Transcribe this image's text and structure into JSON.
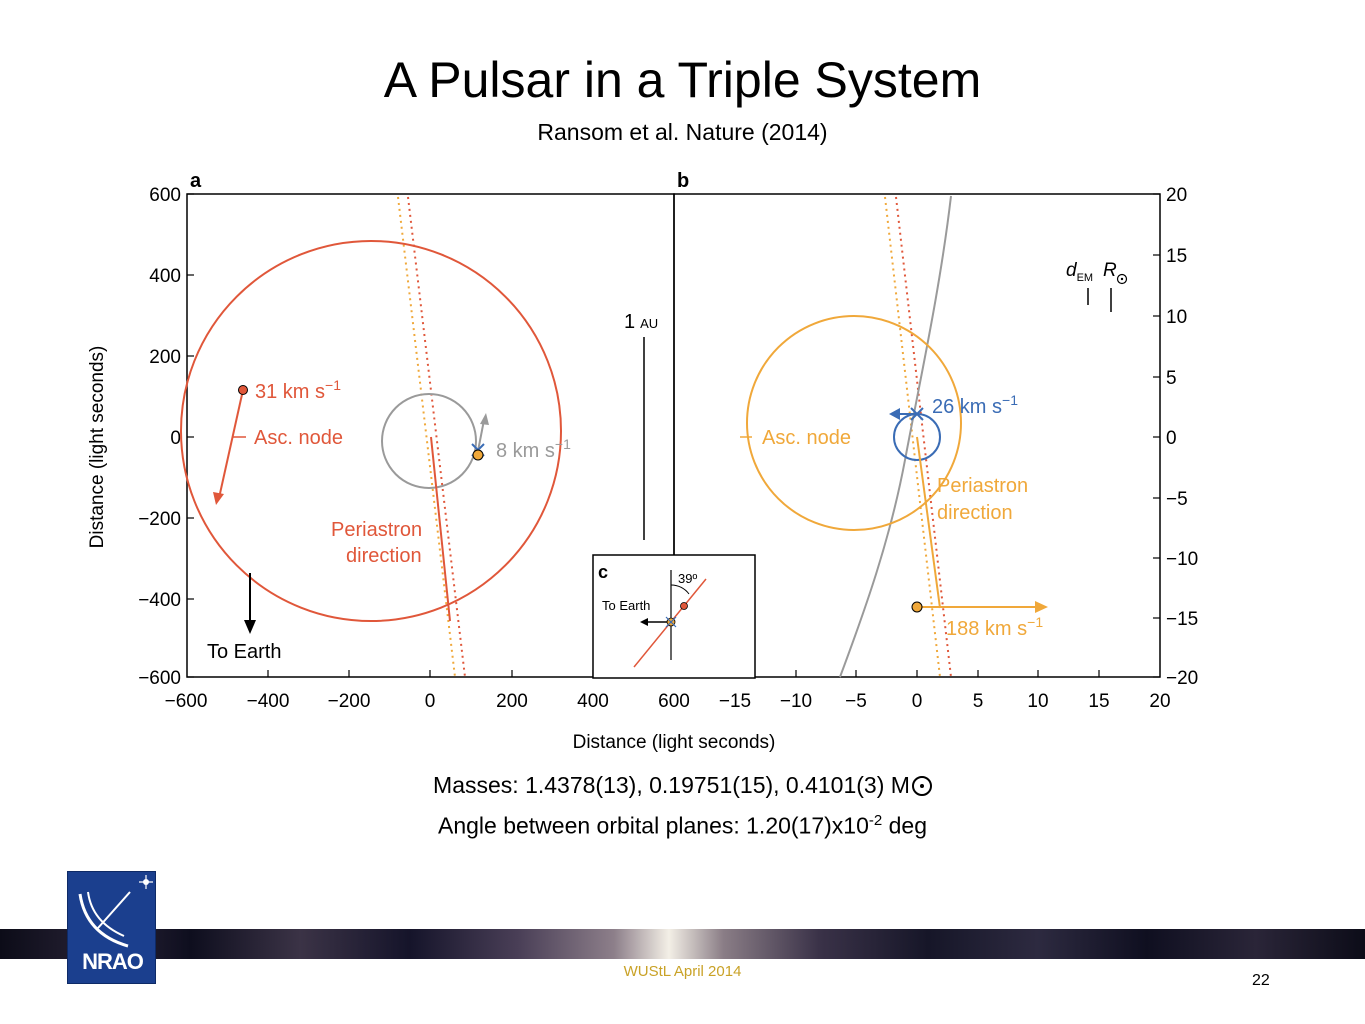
{
  "slide": {
    "title": "A Pulsar in a Triple System",
    "subtitle": "Ransom et al. Nature (2014)",
    "masses_line": "Masses:  1.4378(13), 0.19751(15), 0.4101(3) M",
    "angle_line_pre": "Angle between orbital planes: 1.20(17)x10",
    "angle_line_exp": "-2",
    "angle_line_post": " deg",
    "footer": "WUStL April 2014",
    "page_number": "22",
    "logo_text": "NRAO"
  },
  "figure": {
    "colors": {
      "red": "#e0573a",
      "orange": "#f0a83a",
      "gray": "#9a9a9a",
      "blue": "#3a6cb5",
      "black": "#000000"
    },
    "panel_a": {
      "letter": "a",
      "ylabel": "Distance (light seconds)",
      "y_ticks": [
        "600",
        "400",
        "200",
        "0",
        "−200",
        "−400",
        "−600"
      ],
      "x_ticks": [
        "−600",
        "−400",
        "−200",
        "0",
        "200",
        "400",
        "600"
      ],
      "velocity_outer": "31 km s",
      "velocity_inner": "8 km s",
      "exp": "−1",
      "asc_node": "Asc. node",
      "periastron_1": "Periastron",
      "periastron_2": "direction",
      "to_earth": "To Earth",
      "scale": "1",
      "scale_unit": "AU"
    },
    "panel_b": {
      "letter": "b",
      "y_ticks": [
        "20",
        "15",
        "10",
        "5",
        "0",
        "−5",
        "−10",
        "−15",
        "−20"
      ],
      "x_ticks": [
        "−15",
        "−10",
        "−5",
        "0",
        "5",
        "10",
        "15",
        "20"
      ],
      "velocity_blue": "26 km s",
      "velocity_orange": "188 km s",
      "exp": "−1",
      "asc_node": "Asc. node",
      "periastron_1": "Periastron",
      "periastron_2": "direction",
      "d_em": "d",
      "d_em_sub": "EM",
      "r_sun": "R"
    },
    "panel_c": {
      "letter": "c",
      "angle": "39º",
      "to_earth": "To Earth"
    },
    "xlabel": "Distance (light seconds)"
  }
}
